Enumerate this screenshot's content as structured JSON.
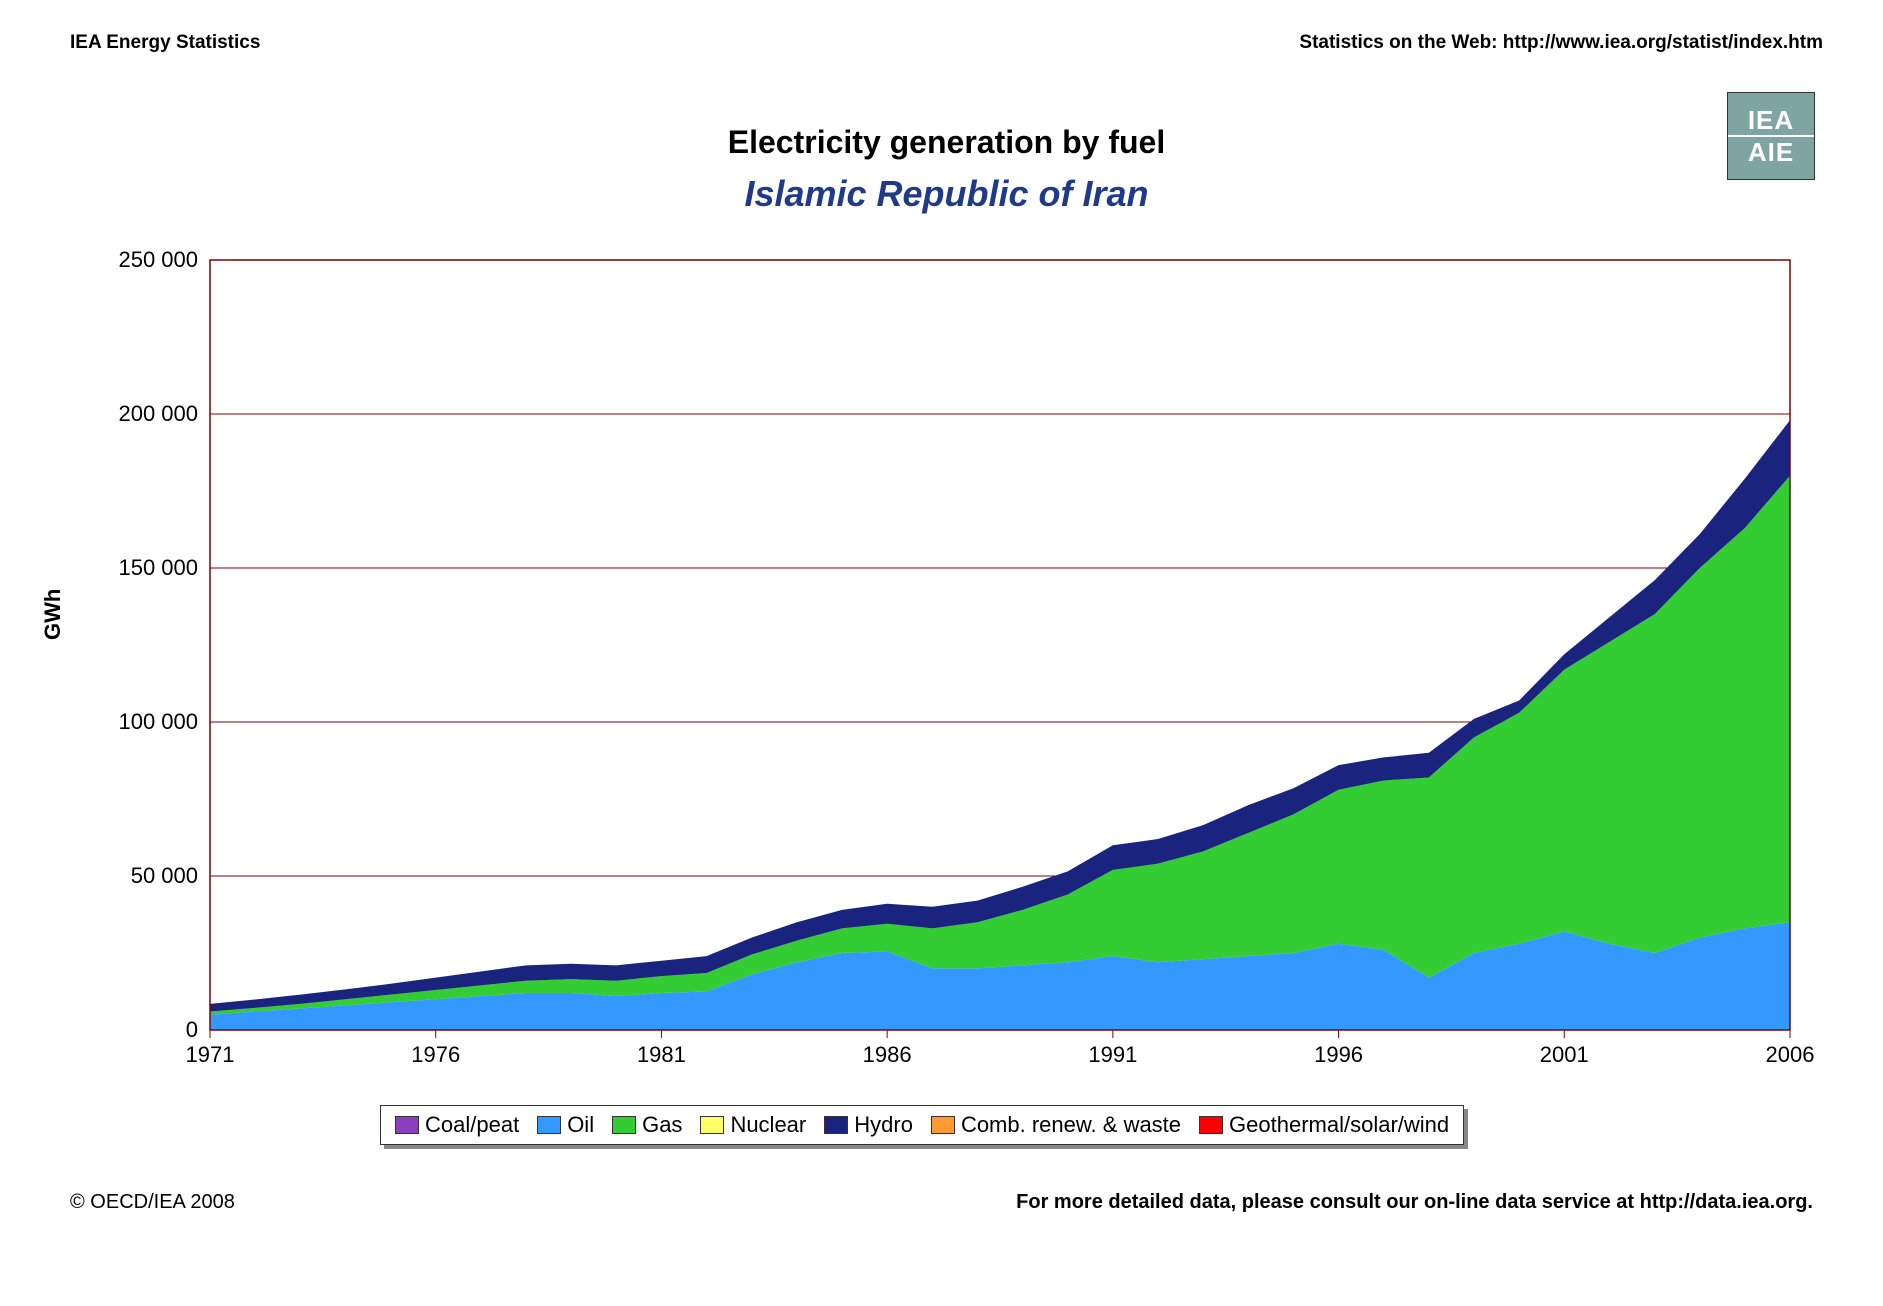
{
  "header": {
    "left": "IEA Energy Statistics",
    "right": "Statistics on the Web: http://www.iea.org/statist/index.htm"
  },
  "logo": {
    "top": "IEA",
    "bottom": "AIE"
  },
  "titles": {
    "main": "Electricity generation by fuel",
    "sub": "Islamic Republic of Iran",
    "sub_color": "#203a8a"
  },
  "chart": {
    "type": "area-stacked",
    "background_color": "#ffffff",
    "grid_color": "#800000",
    "border_color": "#800000",
    "ylabel": "GWh",
    "label_fontsize": 22,
    "tick_fontsize": 22,
    "x": {
      "min": 1971,
      "max": 2006,
      "tick_step": 5,
      "ticks": [
        1971,
        1976,
        1981,
        1986,
        1991,
        1996,
        2001,
        2006
      ]
    },
    "y": {
      "min": 0,
      "max": 250000,
      "tick_step": 50000,
      "ticks": [
        0,
        50000,
        100000,
        150000,
        200000,
        250000
      ]
    },
    "years": [
      1971,
      1972,
      1973,
      1974,
      1975,
      1976,
      1977,
      1978,
      1979,
      1980,
      1981,
      1982,
      1983,
      1984,
      1985,
      1986,
      1987,
      1988,
      1989,
      1990,
      1991,
      1992,
      1993,
      1994,
      1995,
      1996,
      1997,
      1998,
      1999,
      2000,
      2001,
      2002,
      2003,
      2004,
      2005,
      2006
    ],
    "series": [
      {
        "name": "Coal/peat",
        "color": "#8b3fbf",
        "values": [
          0,
          0,
          0,
          0,
          0,
          0,
          0,
          0,
          0,
          0,
          0,
          0,
          0,
          0,
          0,
          0,
          0,
          0,
          0,
          0,
          0,
          0,
          0,
          0,
          0,
          0,
          0,
          0,
          0,
          0,
          0,
          0,
          0,
          0,
          0,
          0
        ]
      },
      {
        "name": "Oil",
        "color": "#3399ff",
        "values": [
          5000,
          6000,
          7000,
          8000,
          9000,
          10000,
          11000,
          12000,
          12000,
          11000,
          12000,
          12500,
          18000,
          22000,
          25000,
          25500,
          20000,
          20000,
          21000,
          22000,
          24000,
          22000,
          23000,
          24000,
          25000,
          28000,
          26000,
          17000,
          25000,
          28000,
          32000,
          28000,
          25000,
          30000,
          33000,
          35000
        ]
      },
      {
        "name": "Gas",
        "color": "#33cc33",
        "values": [
          1000,
          1200,
          1500,
          2000,
          2500,
          3000,
          3500,
          4000,
          4500,
          5000,
          5500,
          6000,
          6500,
          7000,
          8000,
          9000,
          13000,
          15000,
          18000,
          22000,
          28000,
          32000,
          35000,
          40000,
          45000,
          50000,
          55000,
          65000,
          70000,
          75000,
          85000,
          98000,
          110000,
          120000,
          130000,
          145000
        ]
      },
      {
        "name": "Nuclear",
        "color": "#ffff66",
        "values": [
          0,
          0,
          0,
          0,
          0,
          0,
          0,
          0,
          0,
          0,
          0,
          0,
          0,
          0,
          0,
          0,
          0,
          0,
          0,
          0,
          0,
          0,
          0,
          0,
          0,
          0,
          0,
          0,
          0,
          0,
          0,
          0,
          0,
          0,
          0,
          0
        ]
      },
      {
        "name": "Hydro",
        "color": "#1a237e",
        "values": [
          2500,
          2700,
          3000,
          3200,
          3500,
          4000,
          4500,
          5000,
          5000,
          5000,
          5000,
          5500,
          5500,
          6000,
          6000,
          6500,
          7000,
          7000,
          7500,
          7500,
          8000,
          8000,
          8500,
          9000,
          8500,
          8000,
          7500,
          8000,
          6000,
          4000,
          5000,
          8000,
          11000,
          11000,
          16000,
          18000
        ]
      },
      {
        "name": "Comb. renew. & waste",
        "color": "#ff9933",
        "values": [
          0,
          0,
          0,
          0,
          0,
          0,
          0,
          0,
          0,
          0,
          0,
          0,
          0,
          0,
          0,
          0,
          0,
          0,
          0,
          0,
          0,
          0,
          0,
          0,
          0,
          0,
          0,
          0,
          0,
          0,
          0,
          0,
          0,
          0,
          0,
          0
        ]
      },
      {
        "name": "Geothermal/solar/wind",
        "color": "#ff0000",
        "values": [
          0,
          0,
          0,
          0,
          0,
          0,
          0,
          0,
          0,
          0,
          0,
          0,
          0,
          0,
          0,
          0,
          0,
          0,
          0,
          0,
          0,
          0,
          0,
          0,
          0,
          0,
          0,
          0,
          0,
          0,
          0,
          0,
          0,
          0,
          0,
          0
        ]
      }
    ]
  },
  "legend": {
    "items": [
      {
        "label": "Coal/peat",
        "color": "#8b3fbf"
      },
      {
        "label": "Oil",
        "color": "#3399ff"
      },
      {
        "label": "Gas",
        "color": "#33cc33"
      },
      {
        "label": "Nuclear",
        "color": "#ffff66"
      },
      {
        "label": "Hydro",
        "color": "#1a237e"
      },
      {
        "label": "Comb. renew. & waste",
        "color": "#ff9933"
      },
      {
        "label": "Geothermal/solar/wind",
        "color": "#ff0000"
      }
    ]
  },
  "footer": {
    "left": "© OECD/IEA 2008",
    "right": "For more detailed data, please consult our on-line data service at http://data.iea.org."
  }
}
